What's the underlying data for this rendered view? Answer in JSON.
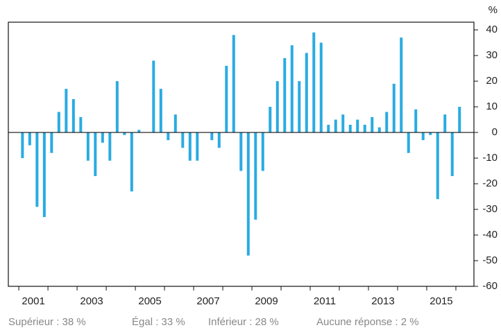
{
  "chart_data": {
    "type": "bar",
    "y_unit": "%",
    "color": "#29abe2",
    "x": [
      2001.125,
      2001.375,
      2001.625,
      2001.875,
      2002.125,
      2002.375,
      2002.625,
      2002.875,
      2003.125,
      2003.375,
      2003.625,
      2003.875,
      2004.125,
      2004.375,
      2004.625,
      2004.875,
      2005.125,
      2005.375,
      2005.625,
      2005.875,
      2006.125,
      2006.375,
      2006.625,
      2006.875,
      2007.125,
      2007.375,
      2007.625,
      2007.875,
      2008.125,
      2008.375,
      2008.625,
      2008.875,
      2009.125,
      2009.375,
      2009.625,
      2009.875,
      2010.125,
      2010.375,
      2010.625,
      2010.875,
      2011.125,
      2011.375,
      2011.625,
      2011.875,
      2012.125,
      2012.375,
      2012.625,
      2012.875,
      2013.125,
      2013.375,
      2013.625,
      2013.875,
      2014.125,
      2014.375,
      2014.625,
      2014.875,
      2015.125,
      2015.375,
      2015.625,
      2015.875,
      2016.125
    ],
    "values": [
      -10,
      -5,
      -29,
      -33,
      -8,
      8,
      17,
      13,
      6,
      -11,
      -17,
      -4,
      -11,
      20,
      -1,
      -23,
      1,
      0,
      28,
      17,
      -3,
      7,
      -6,
      -11,
      -11,
      0,
      -3,
      -6,
      26,
      38,
      -15,
      -48,
      -34,
      -15,
      10,
      20,
      29,
      34,
      20,
      31,
      39,
      35,
      3,
      5,
      7,
      3,
      5,
      3,
      6,
      2,
      8,
      19,
      37,
      -8,
      9,
      -3,
      -1,
      -26,
      7,
      -17,
      10
    ],
    "xlim": [
      2000.64,
      2016.62
    ],
    "xticks": [
      {
        "value": 2001.5,
        "label": "2001"
      },
      {
        "value": 2003.5,
        "label": "2003"
      },
      {
        "value": 2005.5,
        "label": "2005"
      },
      {
        "value": 2007.5,
        "label": "2007"
      },
      {
        "value": 2009.5,
        "label": "2009"
      },
      {
        "value": 2011.5,
        "label": "2011"
      },
      {
        "value": 2013.5,
        "label": "2013"
      },
      {
        "value": 2015.5,
        "label": "2015"
      }
    ],
    "xtick_marks": [
      2001,
      2002,
      2003,
      2004,
      2005,
      2006,
      2007,
      2008,
      2009,
      2010,
      2011,
      2012,
      2013,
      2014,
      2015,
      2016
    ],
    "ylim": [
      -60,
      43
    ],
    "yticks": [
      40,
      30,
      20,
      10,
      0,
      -10,
      -20,
      -30,
      -40,
      -50,
      -60
    ],
    "y_axis_side": "right",
    "footer": [
      "Supérieur : 38 %",
      "Égal : 33 %",
      "Inférieur : 28 %",
      "Aucune réponse : 2 %"
    ]
  }
}
